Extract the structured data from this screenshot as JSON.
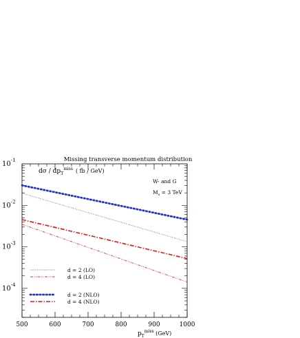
{
  "chart_data": {
    "type": "line",
    "title": "Missing transverse momentum distribution",
    "ylabel": {
      "main": "dσ / dp",
      "sub": "T",
      "sup": "miss",
      "unit": "( fb / GeV)"
    },
    "xlabel": {
      "main": "p",
      "sub": "T",
      "sup": "miss",
      "unit": " (GeV)"
    },
    "annotations": {
      "line1": "W- and G",
      "line2_main": "M",
      "line2_sub": "s",
      "line2_rest": " = 3 TeV"
    },
    "xlim": [
      500,
      1000
    ],
    "ylim": [
      2e-05,
      0.1
    ],
    "yscale": "log",
    "grid": false,
    "legend_position": "bottom-left",
    "x_ticks": [
      {
        "value": 500,
        "label": "500"
      },
      {
        "value": 600,
        "label": "600"
      },
      {
        "value": 700,
        "label": "700"
      },
      {
        "value": 800,
        "label": "800"
      },
      {
        "value": 900,
        "label": "900"
      },
      {
        "value": 1000,
        "label": "1000"
      }
    ],
    "y_ticks": [
      {
        "value": 0.1,
        "base": "10",
        "exp": "-1"
      },
      {
        "value": 0.01,
        "base": "10",
        "exp": "-2"
      },
      {
        "value": 0.001,
        "base": "10",
        "exp": "-3"
      },
      {
        "value": 0.0001,
        "base": "10",
        "exp": "-4"
      }
    ],
    "series": [
      {
        "name": "d = 2 (LO)",
        "color": "#5566ee",
        "style": "dotted",
        "x": [
          500,
          1000
        ],
        "y": [
          0.0196,
          0.00133
        ]
      },
      {
        "name": "d = 4 (LO)",
        "color": "#ee3333",
        "style": "dashdotdot",
        "x": [
          500,
          1000
        ],
        "y": [
          0.00349,
          0.000142
        ]
      },
      {
        "name": "d = 2 (NLO)",
        "color": "#2233cc",
        "style": "thick-dotted",
        "x": [
          500,
          1000
        ],
        "y": [
          0.0303,
          0.00452
        ]
      },
      {
        "name": "d = 4 (NLO)",
        "color": "#ee1111",
        "style": "thick-dashdot",
        "x": [
          500,
          1000
        ],
        "y": [
          0.00453,
          0.000522
        ]
      }
    ]
  }
}
